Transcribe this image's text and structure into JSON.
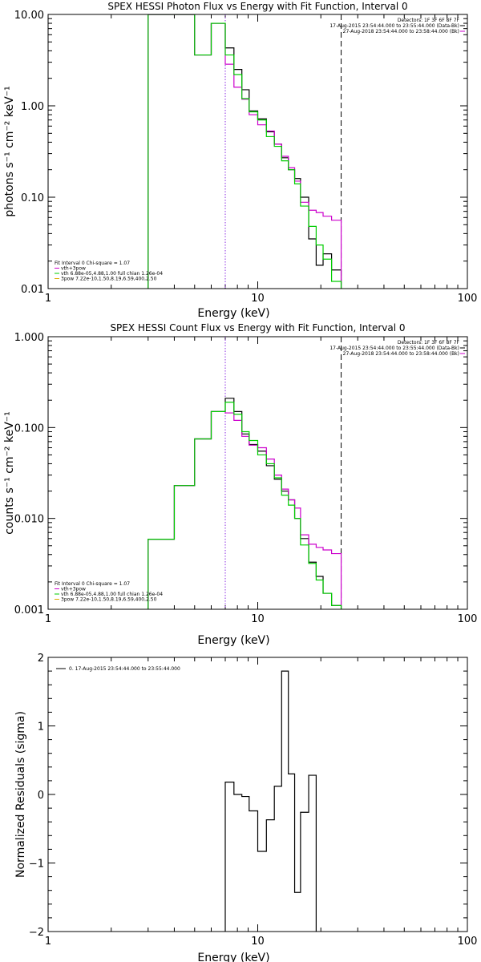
{
  "chart_data": [
    {
      "type": "line",
      "title": "SPEX HESSI Photon Flux vs Energy with Fit Function, Interval 0",
      "xlabel": "Energy (keV)",
      "ylabel": "photons s⁻¹ cm⁻² keV⁻¹",
      "xscale": "log",
      "yscale": "log",
      "xlim": [
        1,
        100
      ],
      "ylim": [
        0.01,
        10
      ],
      "xticks": [
        {
          "v": 1,
          "label": "1"
        },
        {
          "v": 10,
          "label": "10"
        },
        {
          "v": 100,
          "label": "100"
        }
      ],
      "yticks": [
        {
          "v": 0.01,
          "label": "0.01"
        },
        {
          "v": 0.1,
          "label": "0.10"
        },
        {
          "v": 1,
          "label": "1.00"
        },
        {
          "v": 10,
          "label": "10.00"
        }
      ],
      "vlines": [
        {
          "x": 7.0,
          "style": "dotted",
          "color": "#8a2be2"
        },
        {
          "x": 25.0,
          "style": "dashed",
          "color": "#000000"
        }
      ],
      "info": [
        "Detectors: 1F 3F 6F 8F 7F",
        "17-Aug-2015 23:54:44.000 to 23:55:44.000 (Data-Bk)",
        "27-Aug-2018 23:54:44.000 to 23:58:44.000 (Bk)"
      ],
      "legend": [
        {
          "text": "Fit Interval 0   Chi-square = 1.07",
          "color": ""
        },
        {
          "text": "vth+3pow",
          "color": "#cc00cc"
        },
        {
          "text": "vth 6.88e-05,4.88,1.00   full chian 1.26e-04",
          "color": "#00cc00"
        },
        {
          "text": "3pow 7.22e-10,1.50,8.19,6.59,400,2.50",
          "color": "#ddaa00"
        }
      ],
      "edges": [
        3,
        4,
        5,
        6,
        7,
        7.7,
        8.4,
        9.1,
        10,
        11,
        12,
        13,
        14,
        15,
        16,
        17.5,
        19,
        20.5,
        22.5,
        25
      ],
      "series": [
        {
          "name": "Data-Bk",
          "color": "#000000",
          "values": [
            10,
            10,
            3.6,
            8,
            4.3,
            2.5,
            1.5,
            0.88,
            0.72,
            0.52,
            0.38,
            0.27,
            0.2,
            0.16,
            0.1,
            0.035,
            0.018,
            0.024,
            0.016
          ]
        },
        {
          "name": "vth+3pow",
          "color": "#cc00cc",
          "values": [
            10,
            10,
            3.6,
            8,
            2.85,
            1.6,
            1.18,
            0.8,
            0.62,
            0.53,
            0.38,
            0.28,
            0.21,
            0.15,
            0.088,
            0.072,
            0.068,
            0.062,
            0.056
          ]
        },
        {
          "name": "vth",
          "color": "#00cc00",
          "values": [
            10,
            10,
            3.6,
            8,
            3.6,
            2.2,
            1.2,
            0.86,
            0.7,
            0.46,
            0.36,
            0.25,
            0.2,
            0.14,
            0.08,
            0.048,
            0.03,
            0.021,
            0.012
          ]
        }
      ]
    },
    {
      "type": "line",
      "title": "SPEX HESSI Count Flux vs Energy with Fit Function, Interval 0",
      "xlabel": "Energy (keV)",
      "ylabel": "counts s⁻¹ cm⁻² keV⁻¹",
      "xscale": "log",
      "yscale": "log",
      "xlim": [
        1,
        100
      ],
      "ylim": [
        0.001,
        1
      ],
      "xticks": [
        {
          "v": 1,
          "label": "1"
        },
        {
          "v": 10,
          "label": "10"
        },
        {
          "v": 100,
          "label": "100"
        }
      ],
      "yticks": [
        {
          "v": 0.001,
          "label": "0.001"
        },
        {
          "v": 0.01,
          "label": "0.010"
        },
        {
          "v": 0.1,
          "label": "0.100"
        },
        {
          "v": 1,
          "label": "1.000"
        }
      ],
      "vlines": [
        {
          "x": 7.0,
          "style": "dotted",
          "color": "#8a2be2"
        },
        {
          "x": 25.0,
          "style": "dashed",
          "color": "#000000"
        }
      ],
      "info": [
        "Detectors: 1F 3F 6F 8F 7F",
        "17-Aug-2015 23:54:44.000 to 23:55:44.000 (Data-Bk)",
        "27-Aug-2018 23:54:44.000 to 23:58:44.000 (Bk)"
      ],
      "legend": [
        {
          "text": "Fit Interval 0   Chi-square = 1.07",
          "color": ""
        },
        {
          "text": "vth+3pow",
          "color": "#cc00cc"
        },
        {
          "text": "vth 6.88e-05,4.88,1.00   full chian 1.26e-04",
          "color": "#00cc00"
        },
        {
          "text": "3pow 7.22e-10,1.50,8.19,6.59,400,2.50",
          "color": "#ddaa00"
        }
      ],
      "edges": [
        3,
        4,
        5,
        6,
        7,
        7.7,
        8.4,
        9.1,
        10,
        11,
        12,
        13,
        14,
        15,
        16,
        17.5,
        19,
        20.5,
        22.5,
        25
      ],
      "series": [
        {
          "name": "Data-Bk",
          "color": "#000000",
          "values": [
            0.0059,
            0.023,
            0.075,
            0.15,
            0.21,
            0.15,
            0.085,
            0.065,
            0.055,
            0.038,
            0.027,
            0.02,
            0.016,
            0.01,
            0.006,
            0.0033,
            0.0023,
            0.0015,
            0.0011
          ]
        },
        {
          "name": "vth+3pow",
          "color": "#cc00cc",
          "values": [
            0.0059,
            0.023,
            0.075,
            0.15,
            0.145,
            0.12,
            0.08,
            0.064,
            0.06,
            0.045,
            0.03,
            0.021,
            0.016,
            0.013,
            0.0066,
            0.0052,
            0.0048,
            0.0045,
            0.0041
          ]
        },
        {
          "name": "vth",
          "color": "#00cc00",
          "values": [
            0.0059,
            0.023,
            0.075,
            0.15,
            0.19,
            0.14,
            0.09,
            0.072,
            0.05,
            0.04,
            0.028,
            0.018,
            0.014,
            0.01,
            0.0051,
            0.0032,
            0.0021,
            0.0015,
            0.0011
          ]
        }
      ]
    },
    {
      "type": "line",
      "title": "",
      "xlabel": "Energy (keV)",
      "ylabel": "Normalized Residuals (sigma)",
      "xscale": "log",
      "yscale": "linear",
      "xlim": [
        1,
        100
      ],
      "ylim": [
        -2,
        2
      ],
      "xticks": [
        {
          "v": 1,
          "label": "1"
        },
        {
          "v": 10,
          "label": "10"
        },
        {
          "v": 100,
          "label": "100"
        }
      ],
      "yticks": [
        {
          "v": -2,
          "label": "−2"
        },
        {
          "v": -1,
          "label": "−1"
        },
        {
          "v": 0,
          "label": "0"
        },
        {
          "v": 1,
          "label": "1"
        },
        {
          "v": 2,
          "label": "2"
        }
      ],
      "vlines": [],
      "info": [],
      "legend": [
        {
          "text": "0. 17-Aug-2015 23:54:44.000 to 23:55:44.000",
          "color": "#000000"
        }
      ],
      "edges": [
        7,
        7.7,
        8.4,
        9.1,
        10,
        11,
        12,
        13,
        14,
        15,
        16,
        17.5,
        19,
        20.5,
        22.5,
        25
      ],
      "series": [
        {
          "name": "0. 17-Aug-2015 23:54:44.000 to 23:55:44.000",
          "color": "#000000",
          "values": [
            0.18,
            0.0,
            -0.03,
            -0.24,
            -0.83,
            -0.37,
            0.12,
            1.8,
            0.3,
            -1.43,
            -0.26,
            0.28
          ],
          "drop_ends": true
        }
      ]
    }
  ]
}
